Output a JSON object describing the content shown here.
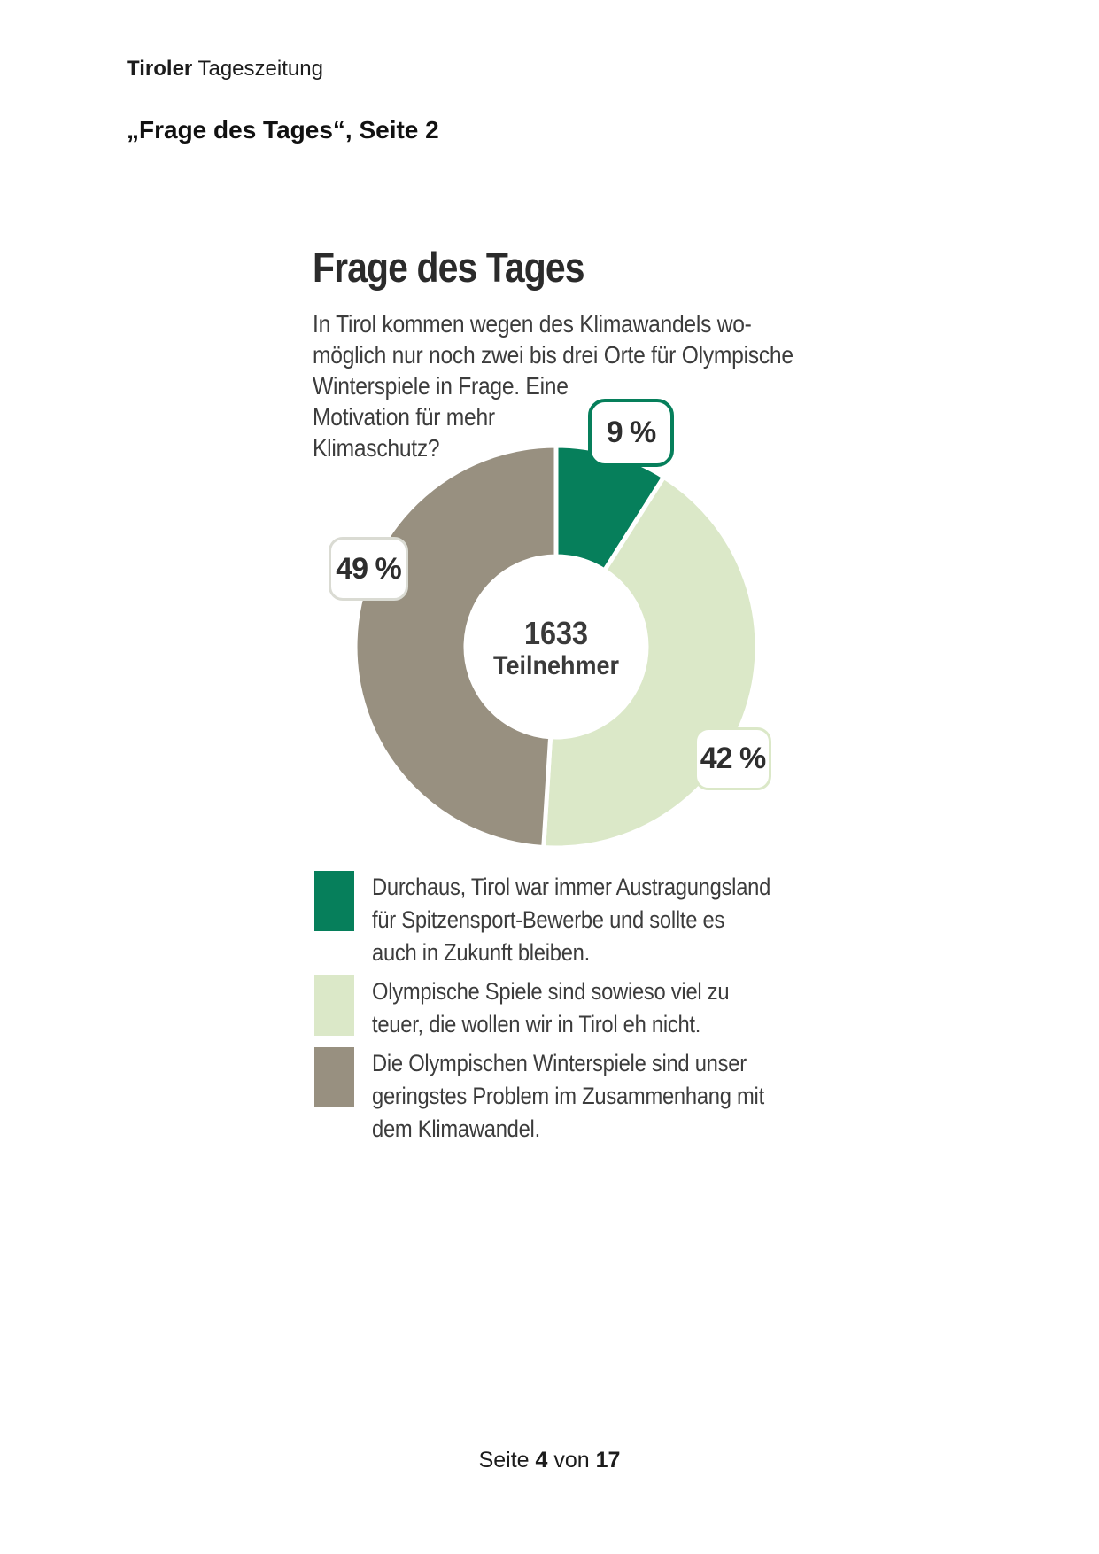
{
  "page": {
    "brand_bold": "Tiroler",
    "brand_rest": " Tageszeitung",
    "subtitle": "„Frage des Tages“, Seite 2",
    "footer": {
      "prefix": "Seite ",
      "page": "4",
      "middle": " von ",
      "total": "17"
    }
  },
  "chart_data": {
    "type": "pie",
    "variant": "donut",
    "title": "Frage des Tages",
    "question_lines": [
      "In Tirol kommen wegen des Klimawandels wo-",
      "möglich nur noch zwei bis drei Orte für Olympische",
      "Winterspiele in Frage. Eine",
      "Motivation für mehr",
      "Klimaschutz?"
    ],
    "center": {
      "value": "1633",
      "label": "Teilnehmer"
    },
    "legend_position": "bottom",
    "slices": [
      {
        "id": "pro-olympia",
        "pct": 9,
        "callout_label": "9 %",
        "color": "#067f5b",
        "callout_border": "#067f5b",
        "legend_lines": [
          "Durchaus, Tirol war immer Austragungsland",
          "für Spitzensport-Bewerbe und sollte es",
          "auch in Zukunft bleiben."
        ]
      },
      {
        "id": "too-expensive",
        "pct": 42,
        "callout_label": "42 %",
        "color": "#dbe8c8",
        "callout_border": "#dbe8c8",
        "legend_lines": [
          "Olympische Spiele sind sowieso viel zu",
          "teuer, die wollen wir in Tirol eh nicht."
        ]
      },
      {
        "id": "least-problem",
        "pct": 49,
        "callout_label": "49 %",
        "color": "#989080",
        "callout_border": "#dadbd3",
        "legend_lines": [
          "Die Olympischen Winterspiele sind unser",
          "geringstes Problem im Zusammenhang mit",
          "dem Klimawandel."
        ]
      }
    ]
  }
}
